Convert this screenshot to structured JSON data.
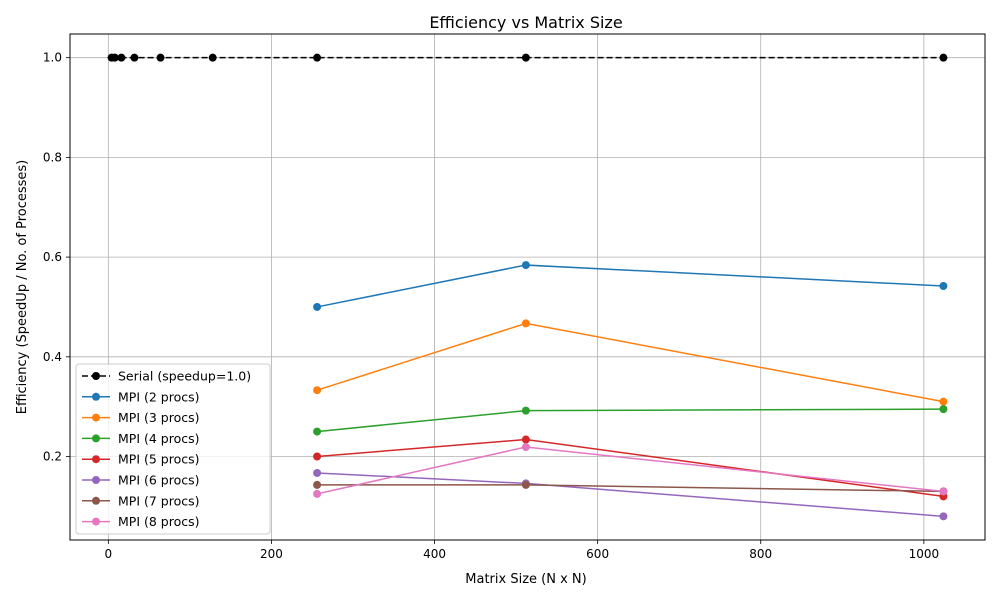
{
  "chart_data": {
    "type": "line",
    "title": "Efficiency vs Matrix Size",
    "xlabel": "Matrix Size (N x N)",
    "ylabel": "Efficiency (SpeedUp / No. of Processes)",
    "xlim": [
      -47,
      1075
    ],
    "ylim": [
      0.0325,
      1.0475
    ],
    "xticks": [
      0,
      200,
      400,
      600,
      800,
      1000
    ],
    "xtick_labels": [
      "0",
      "200",
      "400",
      "600",
      "800",
      "1000"
    ],
    "yticks": [
      0.2,
      0.4,
      0.6,
      0.8,
      1.0
    ],
    "ytick_labels": [
      "0.2",
      "0.4",
      "0.6",
      "0.8",
      "1.0"
    ],
    "grid": true,
    "legend_position": "lower-left",
    "series": [
      {
        "name": "Serial (speedup=1.0)",
        "color": "#000000",
        "dashed": true,
        "x": [
          4,
          8,
          16,
          32,
          64,
          128,
          256,
          512,
          1024
        ],
        "y": [
          1.0,
          1.0,
          1.0,
          1.0,
          1.0,
          1.0,
          1.0,
          1.0,
          1.0
        ]
      },
      {
        "name": "MPI (2 procs)",
        "color": "#1f77b4",
        "dashed": false,
        "x": [
          256,
          512,
          1024
        ],
        "y": [
          0.5,
          0.584,
          0.542
        ]
      },
      {
        "name": "MPI (3 procs)",
        "color": "#ff7f0e",
        "dashed": false,
        "x": [
          256,
          512,
          1024
        ],
        "y": [
          0.333,
          0.467,
          0.31
        ]
      },
      {
        "name": "MPI (4 procs)",
        "color": "#2ca02c",
        "dashed": false,
        "x": [
          256,
          512,
          1024
        ],
        "y": [
          0.25,
          0.292,
          0.295
        ]
      },
      {
        "name": "MPI (5 procs)",
        "color": "#d62728",
        "dashed": false,
        "x": [
          256,
          512,
          1024
        ],
        "y": [
          0.2,
          0.234,
          0.12
        ]
      },
      {
        "name": "MPI (6 procs)",
        "color": "#9467bd",
        "dashed": false,
        "x": [
          256,
          512,
          1024
        ],
        "y": [
          0.167,
          0.146,
          0.08
        ]
      },
      {
        "name": "MPI (7 procs)",
        "color": "#8c564b",
        "dashed": false,
        "x": [
          256,
          512,
          1024
        ],
        "y": [
          0.143,
          0.143,
          0.13
        ]
      },
      {
        "name": "MPI (8 procs)",
        "color": "#e377c2",
        "dashed": false,
        "x": [
          256,
          512,
          1024
        ],
        "y": [
          0.125,
          0.219,
          0.13
        ]
      }
    ]
  }
}
